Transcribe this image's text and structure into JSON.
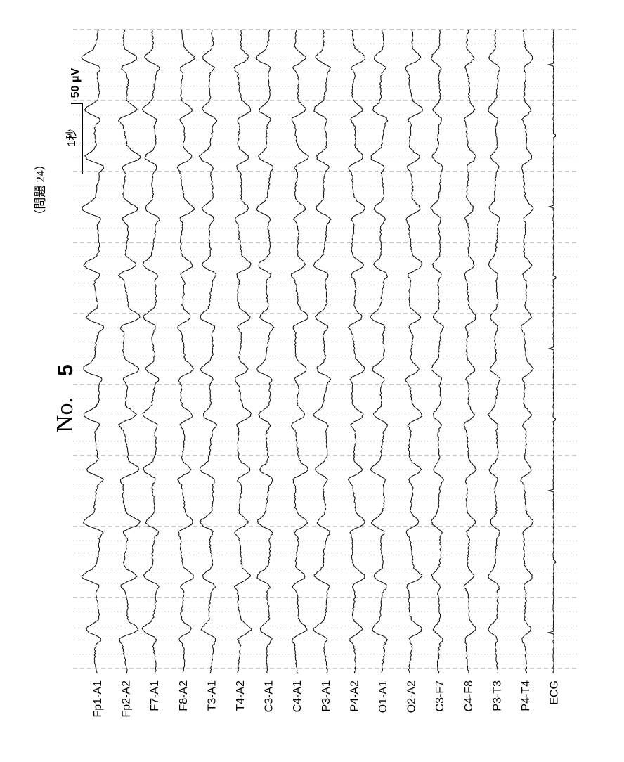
{
  "header": {
    "question_label": "（問題 24）",
    "number_label": "No.",
    "number_value": "5"
  },
  "scale_bar": {
    "time_label": "1秒",
    "amplitude_label": "50 μV"
  },
  "channels": [
    "Fp1-A1",
    "Fp2-A2",
    "F7-A1",
    "F8-A2",
    "T3-A1",
    "T4-A2",
    "C3-A1",
    "C4-A1",
    "P3-A1",
    "P4-A2",
    "O1-A1",
    "O2-A2",
    "C3-F7",
    "C4-F8",
    "P3-T3",
    "P4-T4",
    "ECG"
  ],
  "colors": {
    "trace": "#111111",
    "grid": "#9a9a9a"
  }
}
